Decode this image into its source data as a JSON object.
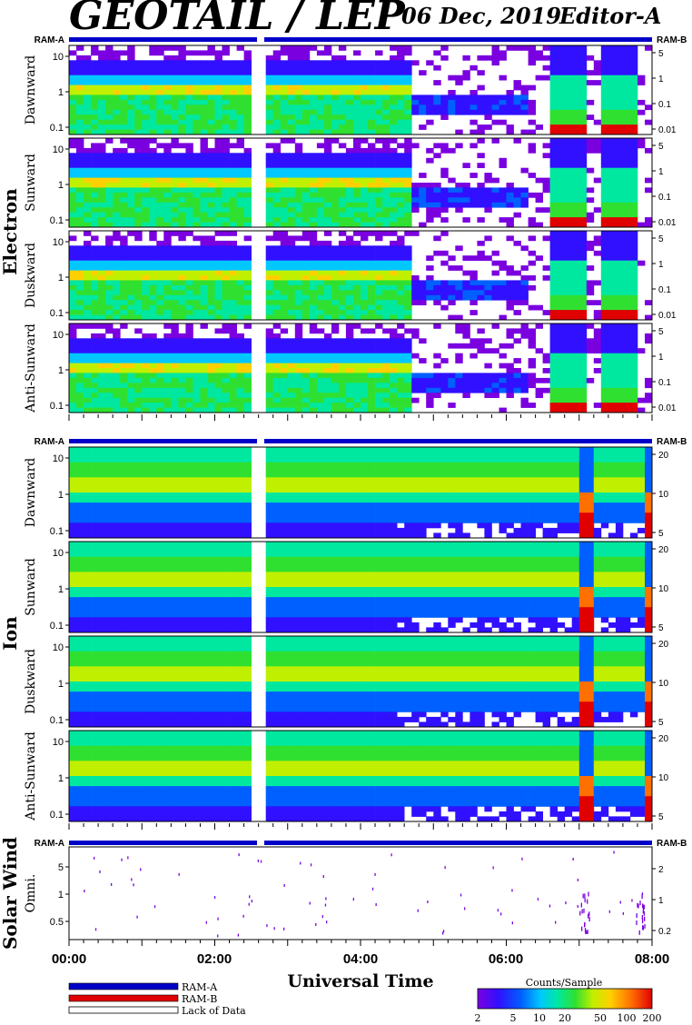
{
  "header": {
    "title": "GEOTAIL / LEP",
    "date": "06 Dec, 2019",
    "editor": "Editor-A"
  },
  "colors": {
    "ram_a": "#0000c8",
    "ram_b": "#e00000",
    "lack": "#ffffff",
    "colorbar": [
      "#7a00e0",
      "#3010ff",
      "#0060ff",
      "#00c8ff",
      "#00e8a0",
      "#30e030",
      "#c0f000",
      "#ffd000",
      "#ff7000",
      "#e00000"
    ]
  },
  "chart_data": [
    {
      "type": "heatmap",
      "group": "Electron",
      "panels": [
        "Dawnward",
        "Sunward",
        "Duskward",
        "Anti-Sunward"
      ],
      "y_left_ticks": [
        "10",
        "1",
        "0.1"
      ],
      "y_right_ticks": [
        "5",
        "1",
        "0.1",
        "0.01"
      ],
      "right_scale_markers": [
        "RAM-A",
        "RAM-B"
      ],
      "time_range_ut": [
        "00:00",
        "08:00"
      ],
      "data_gap_ut": [
        "02:36",
        "02:40"
      ],
      "note_features": "dense counts until ~04:40 UT; broad bursts ~06:35-07:00 and ~07:15-07:45"
    },
    {
      "type": "heatmap",
      "group": "Ion",
      "panels": [
        "Dawnward",
        "Sunward",
        "Duskward",
        "Anti-Sunward"
      ],
      "y_left_ticks": [
        "10",
        "1",
        "0.1"
      ],
      "y_right_ticks": [
        "20",
        "10",
        "5"
      ],
      "right_scale_markers": [
        "RAM-A",
        "RAM-B"
      ],
      "time_range_ut": [
        "00:00",
        "08:00"
      ],
      "data_gap_ut": [
        "02:36",
        "02:40"
      ],
      "note_features": "high-count bands at ~07:00 and ~07:50 UT"
    },
    {
      "type": "scatter",
      "group": "Solar Wind",
      "panels": [
        "Omni."
      ],
      "y_left_ticks": [
        "5",
        "1",
        "0.5"
      ],
      "y_right_ticks": [
        "2",
        "1",
        "0.2"
      ],
      "right_scale_markers": [
        "RAM-A",
        "RAM-B"
      ],
      "time_range_ut": [
        "00:00",
        "08:00"
      ]
    }
  ],
  "xaxis": {
    "ticks": [
      "00:00",
      "02:00",
      "04:00",
      "06:00",
      "08:00"
    ],
    "label": "Universal Time"
  },
  "legend": [
    {
      "label": "RAM-A",
      "color": "#0000c8"
    },
    {
      "label": "RAM-B",
      "color": "#e00000"
    },
    {
      "label": "Lack of Data",
      "color": "#ffffff"
    }
  ],
  "colorbar": {
    "title": "Counts/Sample",
    "ticks": [
      "2",
      "5",
      "10",
      "20",
      "50",
      "100",
      "200"
    ]
  }
}
